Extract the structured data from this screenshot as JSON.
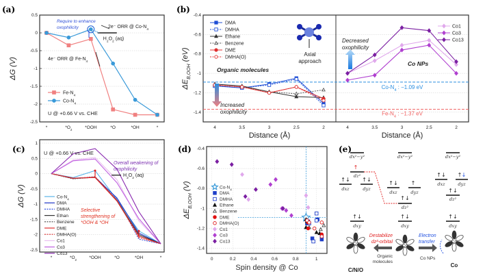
{
  "chart_data": [
    {
      "panel": "(a)",
      "type": "line",
      "ylabel": "ΔG (V)",
      "xlabel": "",
      "categories": [
        "*",
        "*O2",
        "*OOH",
        "*O",
        "*OH",
        "*"
      ],
      "ylim": [
        -2.5,
        0.5
      ],
      "yticks": [
        0.5,
        0,
        -0.5,
        -1,
        -1.5,
        -2,
        -2.5
      ],
      "grid": true,
      "legend": "bottom-left",
      "series": [
        {
          "name": "Fe-N4",
          "color": "#f08080",
          "marker": "square",
          "values": [
            0,
            -0.35,
            -0.17,
            -2.15,
            -2.3,
            -2.3
          ]
        },
        {
          "name": "Co-N4",
          "color": "#3a9ad9",
          "marker": "circle",
          "values": [
            0,
            -0.13,
            0.1,
            -0.86,
            -1.88,
            -2.3
          ]
        }
      ],
      "annotations": {
        "enhance": "Require to enhance oxophilicity",
        "orr2e": "2e⁻ ORR @ Co-N4",
        "h2o2": "H2O2 (aq)",
        "orr4e": "4e⁻ ORR @ Fe-N4",
        "potential": "U @ +0.66 V vs. CHE"
      }
    },
    {
      "panel": "(b)",
      "type": "line",
      "ylabel": "ΔE B,OOH (eV)",
      "xlabel": "Distance (Å)",
      "categories": [
        "4",
        "3.5",
        "3",
        "2.5",
        "2"
      ],
      "ylim": [
        -1.5,
        -0.4
      ],
      "yticks": [
        -0.4,
        -0.6,
        -0.8,
        -1,
        -1.2,
        -1.4
      ],
      "grid": true,
      "legend": "top-left / top-right",
      "left_series": [
        {
          "name": "DMA",
          "color": "#1f4fd6",
          "marker": "square-filled",
          "dash": false,
          "values": [
            -1.13,
            -1.15,
            -1.11,
            -1.05,
            -1.31
          ]
        },
        {
          "name": "DMHA",
          "color": "#1f4fd6",
          "marker": "square-open",
          "dash": true,
          "values": [
            -1.13,
            -1.15,
            -1.12,
            -1.06,
            -1.33
          ]
        },
        {
          "name": "Ethane",
          "color": "#333333",
          "marker": "triangle-filled",
          "dash": false,
          "values": [
            -1.11,
            -1.13,
            -1.19,
            -1.24,
            -1.25
          ]
        },
        {
          "name": "Benzene",
          "color": "#555555",
          "marker": "triangle-open",
          "dash": true,
          "values": [
            -1.12,
            -1.14,
            -1.19,
            -1.21,
            -1.17
          ]
        },
        {
          "name": "DME",
          "color": "#e03030",
          "marker": "circle-filled",
          "dash": false,
          "values": [
            -1.12,
            -1.14,
            -1.2,
            -1.14,
            -1.26
          ]
        },
        {
          "name": "DMHA(O)",
          "color": "#e03030",
          "marker": "circle-open",
          "dash": true,
          "values": [
            -1.12,
            -1.14,
            -1.2,
            -1.14,
            -1.28
          ]
        }
      ],
      "right_series": [
        {
          "name": "Co1",
          "color": "#e0a8ec",
          "values": [
            -1.0,
            -0.87,
            -0.71,
            -0.66,
            -0.91
          ]
        },
        {
          "name": "Co3",
          "color": "#b040d0",
          "values": [
            -1.07,
            -1.02,
            -0.76,
            -0.71,
            -1.0
          ]
        },
        {
          "name": "Co13",
          "color": "#7b1fa2",
          "values": [
            -1.0,
            -0.81,
            -0.53,
            -0.56,
            -0.88
          ]
        }
      ],
      "reference_lines": [
        {
          "label": "Co-N4 : −1.09 eV",
          "value": -1.09,
          "color": "#2a8ee0"
        },
        {
          "label": "Fe-N4 : −1.37 eV",
          "value": -1.37,
          "color": "#f06060"
        }
      ],
      "annotations": {
        "organic": "Organic molecules",
        "increased": "Increased oxophilicity",
        "decreased": "Decreased oxophilicity",
        "conps": "Co NPs",
        "axial": "Axial approach"
      }
    },
    {
      "panel": "(c)",
      "type": "line",
      "ylabel": "ΔG (V)",
      "categories": [
        "*",
        "*O2",
        "*OOH",
        "*O",
        "*OH",
        "*"
      ],
      "ylim": [
        -2.5,
        1
      ],
      "yticks": [
        1,
        0.5,
        0,
        -0.5,
        -1,
        -1.5,
        -2,
        -2.5
      ],
      "grid": true,
      "legend": "left",
      "series": [
        {
          "name": "Co-N4",
          "color": "#5ab4e8",
          "dash": false,
          "values": [
            0,
            -0.13,
            0.1,
            -0.86,
            -1.88,
            -2.3
          ]
        },
        {
          "name": "DMA",
          "color": "#2036c8",
          "dash": false,
          "values": [
            0,
            -0.15,
            -0.12,
            -0.8,
            -1.95,
            -2.3
          ]
        },
        {
          "name": "DMHA",
          "color": "#3050e0",
          "dash": true,
          "values": [
            0,
            -0.17,
            -0.1,
            -0.82,
            -2.15,
            -2.3
          ]
        },
        {
          "name": "Ethan",
          "color": "#333333",
          "dash": false,
          "values": [
            0,
            -0.16,
            -0.12,
            -0.88,
            -2.0,
            -2.3
          ]
        },
        {
          "name": "Benzene",
          "color": "#444444",
          "dash": true,
          "values": [
            0,
            -0.17,
            -0.12,
            -0.9,
            -2.05,
            -2.3
          ]
        },
        {
          "name": "DME",
          "color": "#e03030",
          "dash": false,
          "values": [
            0,
            -0.15,
            -0.13,
            -0.9,
            -2.05,
            -2.3
          ]
        },
        {
          "name": "DMHA(O)",
          "color": "#e03030",
          "dash": true,
          "values": [
            0,
            -0.16,
            -0.1,
            -0.87,
            -2.1,
            -2.3
          ]
        },
        {
          "name": "Co1",
          "color": "#eac0f0",
          "dash": false,
          "values": [
            0,
            0.45,
            0.53,
            -0.2,
            -1.55,
            -2.3
          ]
        },
        {
          "name": "Co3",
          "color": "#c060e0",
          "dash": false,
          "values": [
            0,
            0.42,
            0.48,
            -0.3,
            -1.48,
            -2.3
          ]
        },
        {
          "name": "Co13",
          "color": "#8a2ab0",
          "dash": false,
          "values": [
            0,
            0.65,
            0.82,
            0.15,
            -1.25,
            -2.3
          ]
        }
      ],
      "annotations": {
        "potential": "U @ +0.66 V vs. CHE",
        "overall": "Overall weakening of oxophilicity",
        "h2o2": "H2O2 (aq)",
        "selective": "Selective strengthening of *OOH & *OH"
      }
    },
    {
      "panel": "(d)",
      "type": "scatter",
      "xlabel": "Spin density @ Co",
      "ylabel": "ΔE B,OOH (V)",
      "xlim": [
        -0.05,
        1.1
      ],
      "ylim": [
        -1.45,
        -0.38
      ],
      "xticks": [
        0,
        0.2,
        0.4,
        0.6,
        0.8,
        1
      ],
      "yticks": [
        -0.4,
        -0.6,
        -0.8,
        -1,
        -1.2,
        -1.4
      ],
      "grid": true,
      "legend": "left",
      "reference": {
        "x": 0.9,
        "y": -1.09
      },
      "series": [
        {
          "name": "Co-N4",
          "color": "#3a9ad9",
          "marker": "star",
          "points": [
            [
              0.9,
              -1.09
            ]
          ]
        },
        {
          "name": "DMA",
          "color": "#1f3fc8",
          "marker": "square-filled",
          "points": [
            [
              0.92,
              -1.13
            ],
            [
              0.91,
              -1.15
            ],
            [
              1.01,
              -1.11
            ],
            [
              0.96,
              -1.3
            ],
            [
              1.05,
              -1.31
            ]
          ]
        },
        {
          "name": "DMHA",
          "color": "#1f3fc8",
          "marker": "square-open",
          "points": [
            [
              1.0,
              -1.05
            ],
            [
              1.0,
              -1.12
            ],
            [
              0.93,
              -1.15
            ],
            [
              0.97,
              -1.33
            ],
            [
              1.05,
              -1.28
            ]
          ]
        },
        {
          "name": "Ethane",
          "color": "#111111",
          "marker": "triangle-filled",
          "points": [
            [
              0.9,
              -1.11
            ],
            [
              0.91,
              -1.13
            ],
            [
              0.9,
              -1.19
            ],
            [
              1.0,
              -1.24
            ],
            [
              1.03,
              -1.25
            ]
          ]
        },
        {
          "name": "Benzene",
          "color": "#444444",
          "marker": "triangle-open",
          "points": [
            [
              0.91,
              -1.12
            ],
            [
              0.92,
              -1.14
            ],
            [
              0.93,
              -1.19
            ],
            [
              1.04,
              -1.21
            ],
            [
              1.07,
              -1.17
            ]
          ]
        },
        {
          "name": "DME",
          "color": "#e01010",
          "marker": "circle-filled",
          "points": [
            [
              0.91,
              -1.12
            ],
            [
              0.92,
              -1.14
            ],
            [
              0.92,
              -1.2
            ],
            [
              1.05,
              -1.26
            ]
          ]
        },
        {
          "name": "DMHA(O)",
          "color": "#e02020",
          "marker": "circle-open",
          "points": [
            [
              0.91,
              -1.12
            ],
            [
              0.93,
              -1.14
            ],
            [
              0.98,
              -1.2
            ],
            [
              1.05,
              -1.14
            ],
            [
              1.05,
              -1.28
            ]
          ]
        },
        {
          "name": "Co1",
          "color": "#e0a8ec",
          "marker": "diamond",
          "points": [
            [
              0.29,
              -0.66
            ],
            [
              0.35,
              -0.91
            ],
            [
              0.9,
              -0.87
            ],
            [
              0.92,
              -0.99
            ],
            [
              0.68,
              -1.0
            ]
          ]
        },
        {
          "name": "Co3",
          "color": "#b040d0",
          "marker": "diamond",
          "points": [
            [
              0.56,
              -0.76
            ],
            [
              0.61,
              -0.71
            ],
            [
              0.71,
              -1.02
            ],
            [
              0.76,
              -1.07
            ],
            [
              0.67,
              -1.0
            ]
          ]
        },
        {
          "name": "Co13",
          "color": "#7b1fa2",
          "marker": "diamond",
          "points": [
            [
              0.05,
              -0.53
            ],
            [
              0.19,
              -0.56
            ],
            [
              0.42,
              -0.81
            ],
            [
              0.32,
              -0.88
            ],
            [
              0.68,
              -1.0
            ]
          ]
        }
      ]
    }
  ],
  "panel_e": {
    "label": "(e)",
    "orbitals": {
      "dx2y2": "dx²−y²",
      "dz2": "dz²",
      "dxz": "dxz",
      "dyz": "dyz",
      "dxy": "dxy"
    },
    "electrons": {
      "pair": "↑↓",
      "up": "↑",
      "down": "↓"
    },
    "left_text": {
      "line1": "Destabilize",
      "line2": "dz²-orbital",
      "sub1": "Organic",
      "sub2": "molecules",
      "atom": "C/N/O"
    },
    "right_text": {
      "line1": "Electron",
      "line2": "transfer",
      "sub": "Co NPs",
      "atom": "Co"
    },
    "center_atom": "Co"
  },
  "panel_labels": [
    "(a)",
    "(b)",
    "(c)",
    "(d)",
    "(e)"
  ]
}
